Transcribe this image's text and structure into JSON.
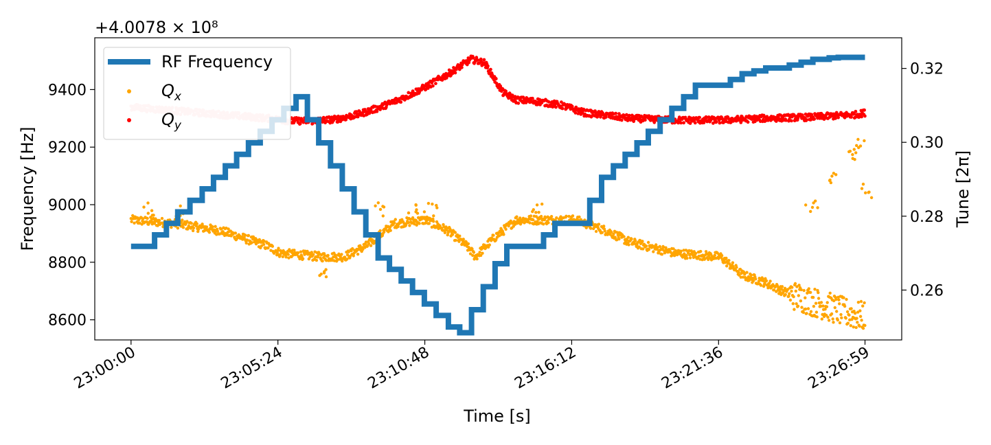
{
  "chart_data": {
    "type": "line+scatter",
    "xlabel": "Time [s]",
    "ylabel_left": "Frequency [Hz]",
    "ylabel_right": "Tune [2π]",
    "offset_text": "+4.0078 × 10⁸",
    "x_tick_labels": [
      "23:00:00",
      "23:05:24",
      "23:10:48",
      "23:16:12",
      "23:21:36",
      "23:26:59"
    ],
    "x_tick_values": [
      0,
      324,
      648,
      972,
      1296,
      1619
    ],
    "xlim": [
      -80,
      1700
    ],
    "ylim_left": [
      8530,
      9580
    ],
    "ylim_right": [
      0.2465,
      0.3283
    ],
    "yticks_left": [
      8600,
      8800,
      9000,
      9200,
      9400
    ],
    "yticks_right": [
      0.26,
      0.28,
      0.3,
      0.32
    ],
    "ytick_labels_right": [
      "0.26",
      "0.28",
      "0.30",
      "0.32"
    ],
    "grid": false,
    "legend_position": "upper-left",
    "series": [
      {
        "name": "RF Frequency",
        "kind": "step-line",
        "axis": "left",
        "color": "#1f77b4",
        "x": [
          0,
          52,
          78,
          103,
          130,
          157,
          182,
          208,
          233,
          259,
          285,
          311,
          337,
          364,
          389,
          414,
          440,
          466,
          492,
          518,
          545,
          570,
          596,
          621,
          647,
          673,
          700,
          725,
          751,
          777,
          803,
          829,
          858,
          884,
          910,
          935,
          960,
          986,
          1012,
          1038,
          1064,
          1090,
          1116,
          1141,
          1167,
          1193,
          1219,
          1245,
          1270,
          1296,
          1322,
          1348,
          1374,
          1400,
          1426,
          1452,
          1478,
          1504,
          1540,
          1560,
          1580,
          1600,
          1619
        ],
        "y": [
          8855,
          8895,
          8935,
          8975,
          9015,
          9055,
          9095,
          9135,
          9175,
          9215,
          9255,
          9295,
          9335,
          9375,
          9295,
          9215,
          9135,
          9055,
          8975,
          8895,
          8815,
          8775,
          8735,
          8695,
          8655,
          8615,
          8575,
          8555,
          8635,
          8715,
          8795,
          8855,
          8855,
          8855,
          8895,
          8935,
          8935,
          8935,
          9015,
          9095,
          9135,
          9175,
          9215,
          9255,
          9295,
          9335,
          9375,
          9415,
          9415,
          9415,
          9435,
          9455,
          9465,
          9475,
          9475,
          9485,
          9495,
          9505,
          9510,
          9512,
          9512,
          9512,
          9512
        ]
      },
      {
        "name": "$Q_x$",
        "kind": "scatter",
        "axis": "right",
        "color": "#ffa500",
        "x": [
          0,
          100,
          200,
          300,
          330,
          420,
          470,
          520,
          580,
          650,
          700,
          740,
          760,
          800,
          850,
          950,
          980,
          1050,
          1100,
          1200,
          1300,
          1350,
          1400,
          1450,
          1500,
          1550,
          1600,
          1619
        ],
        "y": [
          0.279,
          0.278,
          0.276,
          0.272,
          0.27,
          0.269,
          0.269,
          0.272,
          0.278,
          0.279,
          0.276,
          0.272,
          0.269,
          0.274,
          0.279,
          0.279,
          0.279,
          0.276,
          0.273,
          0.27,
          0.269,
          0.264,
          0.262,
          0.259,
          0.257,
          0.255,
          0.253,
          0.253
        ],
        "outliers": {
          "x": [
            40,
            100,
            420,
            550,
            620,
            660,
            900,
            1500,
            1540,
            1590,
            1610,
            1619
          ],
          "y": [
            0.282,
            0.282,
            0.264,
            0.282,
            0.282,
            0.282,
            0.282,
            0.283,
            0.29,
            0.296,
            0.3,
            0.287
          ]
        }
      },
      {
        "name": "$Q_y$",
        "kind": "scatter",
        "axis": "right",
        "color": "#ff0000",
        "x": [
          0,
          100,
          200,
          300,
          350,
          400,
          450,
          500,
          550,
          600,
          650,
          700,
          750,
          780,
          800,
          820,
          850,
          900,
          950,
          1000,
          1100,
          1200,
          1300,
          1400,
          1500,
          1600,
          1619
        ],
        "y": [
          0.3095,
          0.3085,
          0.3075,
          0.3065,
          0.3058,
          0.3058,
          0.3062,
          0.3075,
          0.3095,
          0.312,
          0.315,
          0.3185,
          0.3225,
          0.3215,
          0.3175,
          0.3135,
          0.3115,
          0.311,
          0.31,
          0.308,
          0.3065,
          0.306,
          0.306,
          0.3065,
          0.3068,
          0.3075,
          0.308
        ]
      }
    ]
  }
}
